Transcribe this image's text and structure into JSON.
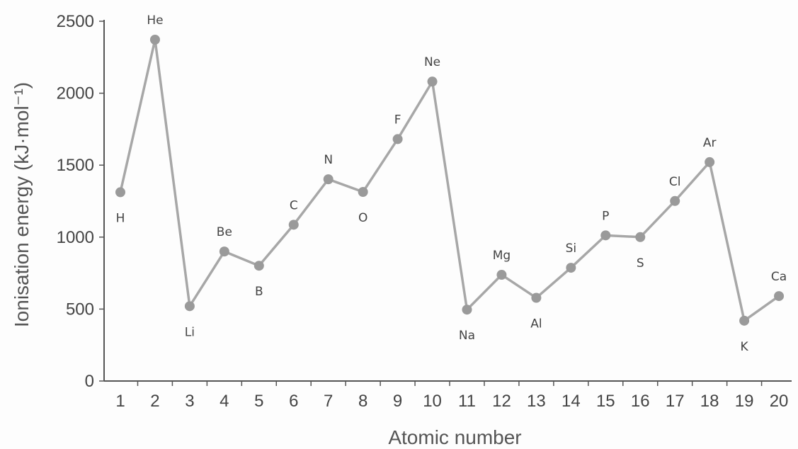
{
  "chart_data": {
    "type": "line",
    "xlabel": "Atomic number",
    "ylabel": "Ionisation energy (kJ·mol⁻¹)",
    "ylim": [
      0,
      2500
    ],
    "yticks": [
      0,
      500,
      1000,
      1500,
      2000,
      2500
    ],
    "grid": false,
    "x": [
      1,
      2,
      3,
      4,
      5,
      6,
      7,
      8,
      9,
      10,
      11,
      12,
      13,
      14,
      15,
      16,
      17,
      18,
      19,
      20
    ],
    "series": [
      {
        "values": [
          1312,
          2372,
          520,
          900,
          801,
          1086,
          1402,
          1314,
          1681,
          2081,
          496,
          738,
          578,
          787,
          1012,
          1000,
          1251,
          1521,
          419,
          590
        ],
        "labels": [
          "H",
          "He",
          "Li",
          "Be",
          "B",
          "C",
          "N",
          "O",
          "F",
          "Ne",
          "Na",
          "Mg",
          "Al",
          "Si",
          "P",
          "S",
          "Cl",
          "Ar",
          "K",
          "Ca"
        ]
      }
    ],
    "colors": {
      "line": "#a7a7a7",
      "marker": "#9a9a9a"
    }
  }
}
